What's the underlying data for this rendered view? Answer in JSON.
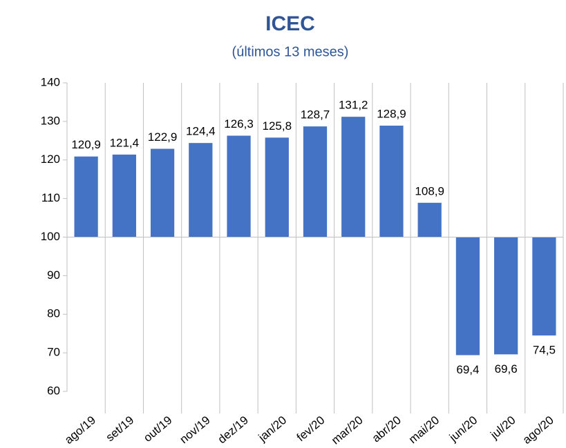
{
  "chart_data": {
    "type": "bar",
    "title": "ICEC",
    "subtitle": "(últimos 13 meses)",
    "categories": [
      "ago/19",
      "set/19",
      "out/19",
      "nov/19",
      "dez/19",
      "jan/20",
      "fev/20",
      "mar/20",
      "abr/20",
      "mai/20",
      "jun/20",
      "jul/20",
      "ago/20"
    ],
    "values": [
      120.9,
      121.4,
      122.9,
      124.4,
      126.3,
      125.8,
      128.7,
      131.2,
      128.9,
      108.9,
      69.4,
      69.6,
      74.5
    ],
    "value_labels": [
      "120,9",
      "121,4",
      "122,9",
      "124,4",
      "126,3",
      "125,8",
      "128,7",
      "131,2",
      "128,9",
      "108,9",
      "69,4",
      "69,6",
      "74,5"
    ],
    "color": "#4472c4",
    "baseline": 100,
    "ylim": [
      60,
      140
    ],
    "yticks": [
      60,
      70,
      80,
      90,
      100,
      110,
      120,
      130,
      140
    ],
    "grid": true
  }
}
